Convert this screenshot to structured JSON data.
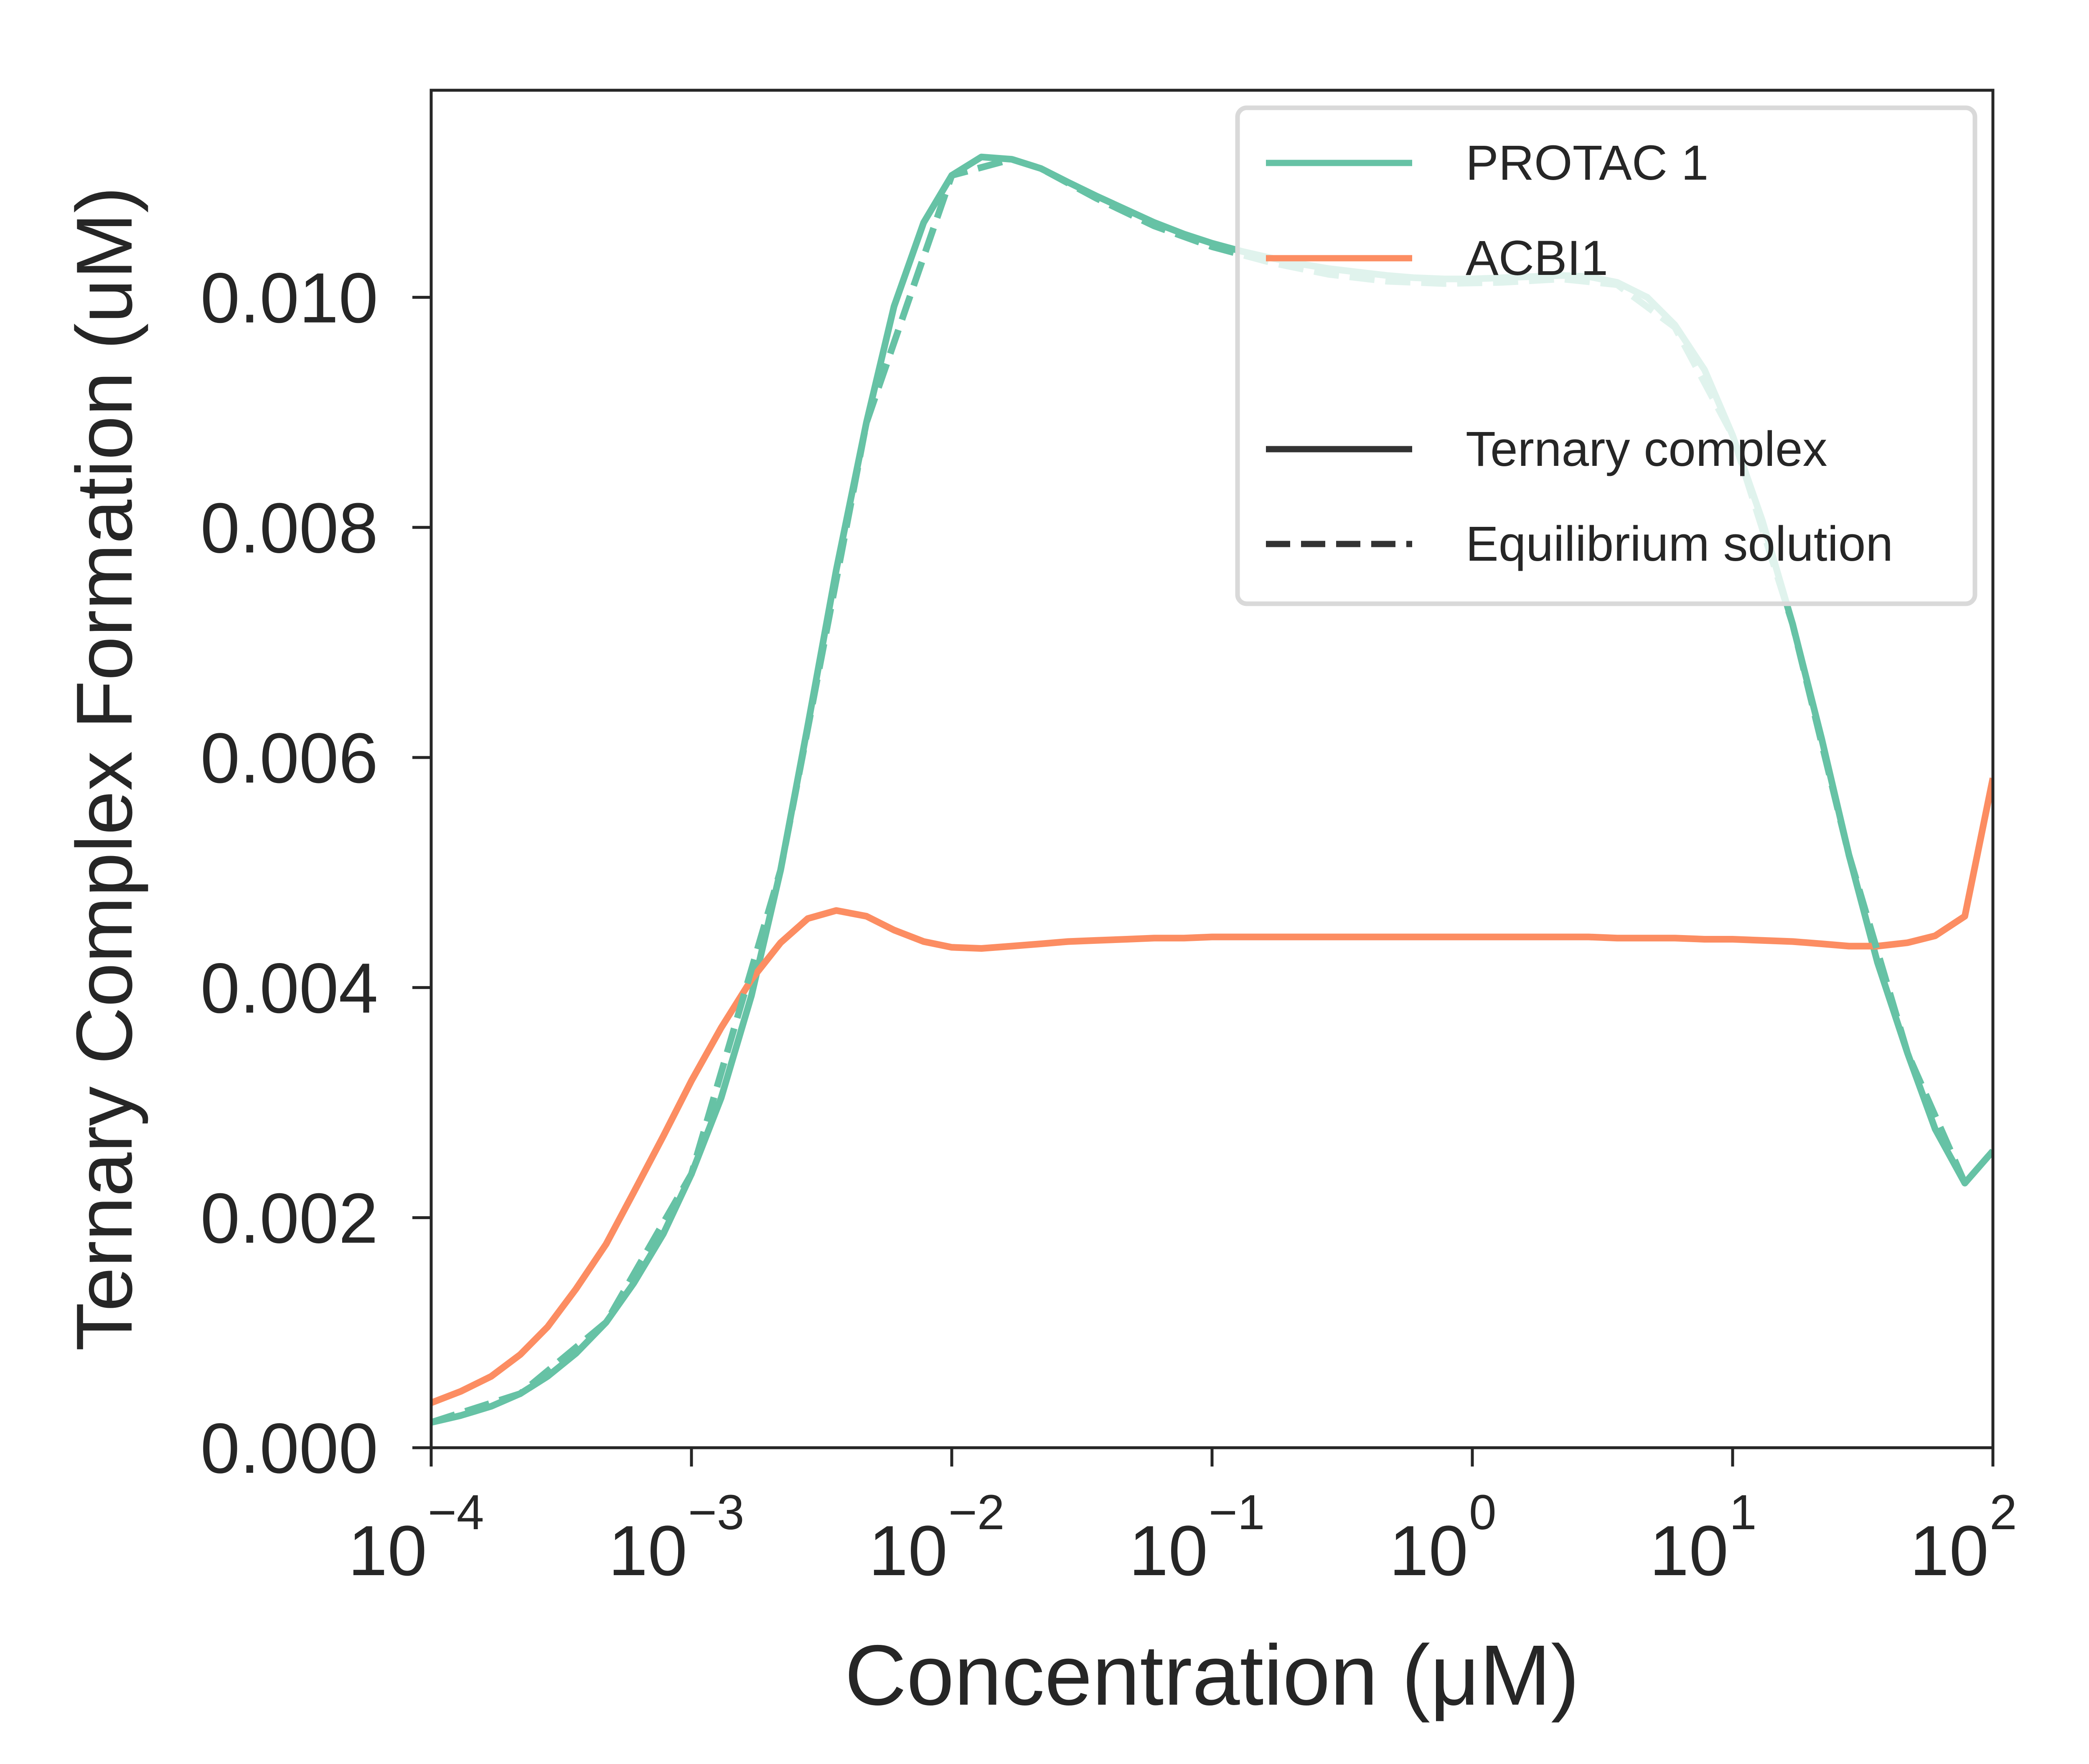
{
  "chart_data": {
    "type": "line",
    "xscale": "log",
    "xlim": [
      0.0001,
      100
    ],
    "ylim": [
      0,
      0.0118
    ],
    "xlabel": "Concentration (μM)",
    "ylabel": "Ternary Complex Formation (uM)",
    "x_ticks": [
      {
        "value": 0.0001,
        "base": "10",
        "exp": "−4"
      },
      {
        "value": 0.001,
        "base": "10",
        "exp": "−3"
      },
      {
        "value": 0.01,
        "base": "10",
        "exp": "−2"
      },
      {
        "value": 0.1,
        "base": "10",
        "exp": "−1"
      },
      {
        "value": 1,
        "base": "10",
        "exp": "0"
      },
      {
        "value": 10,
        "base": "10",
        "exp": "1"
      },
      {
        "value": 100,
        "base": "10",
        "exp": "2"
      }
    ],
    "y_ticks": [
      {
        "value": 0.0,
        "label": "0.000"
      },
      {
        "value": 0.002,
        "label": "0.002"
      },
      {
        "value": 0.004,
        "label": "0.004"
      },
      {
        "value": 0.006,
        "label": "0.006"
      },
      {
        "value": 0.008,
        "label": "0.008"
      },
      {
        "value": 0.01,
        "label": "0.010"
      }
    ],
    "legend_placement": "top-right",
    "legend": {
      "series_entries": [
        {
          "label": "PROTAC 1",
          "color": "#66c2a5"
        },
        {
          "label": "ACBI1",
          "color": "#fc8d62"
        }
      ],
      "style_entries": [
        {
          "label": "Ternary complex",
          "style": "solid",
          "color": "#333333"
        },
        {
          "label": "Equilibrium solution",
          "style": "dashed",
          "color": "#333333"
        }
      ]
    },
    "series": [
      {
        "name": "PROTAC 1",
        "color": "#66c2a5",
        "style": "solid",
        "x": [
          0.0001,
          0.00013,
          0.00017,
          0.00022,
          0.00028,
          0.00036,
          0.00047,
          0.0006,
          0.00078,
          0.001,
          0.0013,
          0.0017,
          0.0022,
          0.0028,
          0.0036,
          0.0047,
          0.006,
          0.0078,
          0.01,
          0.013,
          0.017,
          0.022,
          0.028,
          0.036,
          0.047,
          0.06,
          0.078,
          0.1,
          0.13,
          0.17,
          0.22,
          0.28,
          0.36,
          0.47,
          0.6,
          0.78,
          1,
          1.3,
          1.7,
          2.2,
          2.8,
          3.6,
          4.7,
          6,
          7.8,
          10,
          13,
          17,
          22,
          28,
          36,
          47,
          60,
          78,
          100
        ],
        "y": [
          0.00022,
          0.00028,
          0.00036,
          0.00047,
          0.00062,
          0.00082,
          0.00109,
          0.00143,
          0.00186,
          0.00238,
          0.00304,
          0.00393,
          0.00502,
          0.00628,
          0.00763,
          0.00891,
          0.00992,
          0.01065,
          0.01106,
          0.01122,
          0.0112,
          0.01112,
          0.011,
          0.01088,
          0.01076,
          0.01065,
          0.01055,
          0.01047,
          0.0104,
          0.01034,
          0.01029,
          0.01025,
          0.01022,
          0.01019,
          0.01017,
          0.01016,
          0.01016,
          0.01017,
          0.01018,
          0.01019,
          0.01018,
          0.01013,
          0.01,
          0.00976,
          0.00937,
          0.0088,
          0.00806,
          0.00716,
          0.00616,
          0.00515,
          0.00422,
          0.00343,
          0.00277,
          0.0023,
          0.00258
        ]
      },
      {
        "name": "PROTAC 1",
        "color": "#66c2a5",
        "style": "dashed",
        "x": [
          0.0001,
          0.00022,
          0.00047,
          0.001,
          0.0022,
          0.0047,
          0.01,
          0.017,
          0.022,
          0.036,
          0.06,
          0.1,
          0.17,
          0.28,
          0.47,
          0.78,
          1.3,
          2.2,
          3.6,
          6,
          10,
          17,
          28,
          47,
          78,
          100
        ],
        "y": [
          0.00022,
          0.00047,
          0.00109,
          0.00238,
          0.00502,
          0.00891,
          0.01106,
          0.0112,
          0.01112,
          0.01086,
          0.01062,
          0.01044,
          0.0103,
          0.0102,
          0.01014,
          0.01012,
          0.01013,
          0.01016,
          0.01011,
          0.00974,
          0.0088,
          0.00716,
          0.00515,
          0.00343,
          0.0023,
          0.00258
        ]
      },
      {
        "name": "ACBI1",
        "color": "#fc8d62",
        "style": "solid",
        "x": [
          0.0001,
          0.00013,
          0.00017,
          0.00022,
          0.00028,
          0.00036,
          0.00047,
          0.0006,
          0.00078,
          0.001,
          0.0013,
          0.0017,
          0.0022,
          0.0028,
          0.0036,
          0.0047,
          0.006,
          0.0078,
          0.01,
          0.013,
          0.017,
          0.022,
          0.028,
          0.036,
          0.047,
          0.06,
          0.078,
          0.1,
          0.13,
          0.17,
          0.22,
          0.28,
          0.36,
          0.47,
          0.6,
          0.78,
          1,
          1.3,
          1.7,
          2.2,
          2.8,
          3.6,
          4.7,
          6,
          7.8,
          10,
          13,
          17,
          22,
          28,
          36,
          47,
          60,
          78,
          100
        ],
        "y": [
          0.00039,
          0.00049,
          0.00062,
          0.00081,
          0.00105,
          0.00138,
          0.00177,
          0.00222,
          0.00271,
          0.00319,
          0.00365,
          0.00407,
          0.00439,
          0.0046,
          0.00467,
          0.00462,
          0.0045,
          0.0044,
          0.00435,
          0.00434,
          0.00436,
          0.00438,
          0.0044,
          0.00441,
          0.00442,
          0.00443,
          0.00443,
          0.00444,
          0.00444,
          0.00444,
          0.00444,
          0.00444,
          0.00444,
          0.00444,
          0.00444,
          0.00444,
          0.00444,
          0.00444,
          0.00444,
          0.00444,
          0.00444,
          0.00443,
          0.00443,
          0.00443,
          0.00442,
          0.00442,
          0.00441,
          0.0044,
          0.00438,
          0.00436,
          0.00436,
          0.00439,
          0.00445,
          0.00462,
          0.00582
        ]
      }
    ]
  }
}
